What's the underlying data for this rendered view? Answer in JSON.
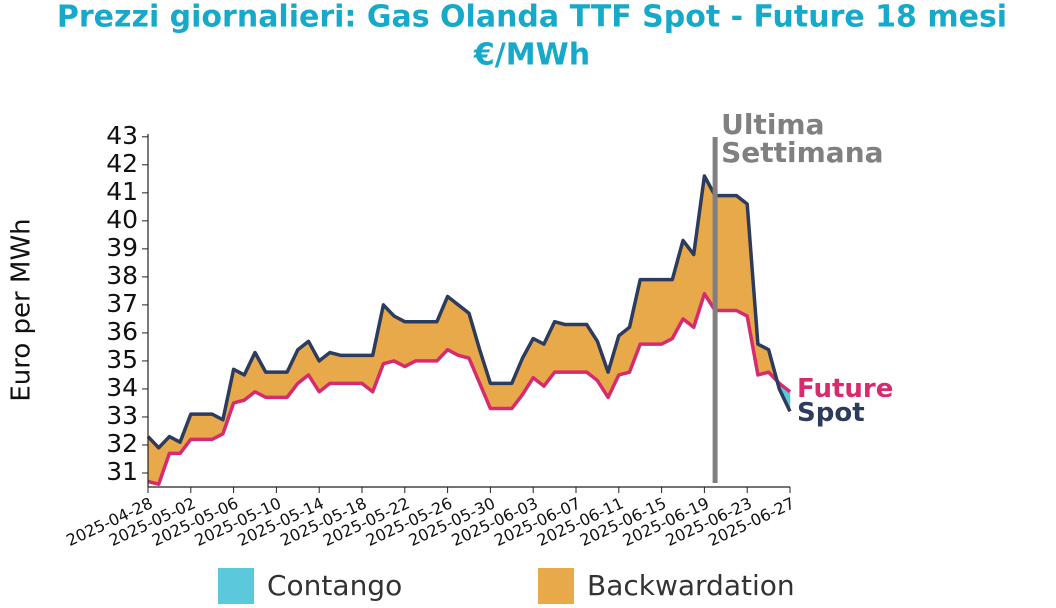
{
  "chart_data": {
    "type": "line-fill",
    "title": "Prezzi giornalieri: Gas Olanda TTF Spot - Future 18 mesi",
    "subtitle": "€/MWh",
    "y_label": "Euro per MWh",
    "x": [
      "2025-04-28",
      "2025-04-29",
      "2025-04-30",
      "2025-05-01",
      "2025-05-02",
      "2025-05-03",
      "2025-05-04",
      "2025-05-05",
      "2025-05-06",
      "2025-05-07",
      "2025-05-08",
      "2025-05-09",
      "2025-05-10",
      "2025-05-11",
      "2025-05-12",
      "2025-05-13",
      "2025-05-14",
      "2025-05-15",
      "2025-05-16",
      "2025-05-17",
      "2025-05-18",
      "2025-05-19",
      "2025-05-20",
      "2025-05-21",
      "2025-05-22",
      "2025-05-23",
      "2025-05-24",
      "2025-05-25",
      "2025-05-26",
      "2025-05-27",
      "2025-05-28",
      "2025-05-29",
      "2025-05-30",
      "2025-05-31",
      "2025-06-01",
      "2025-06-02",
      "2025-06-03",
      "2025-06-04",
      "2025-06-05",
      "2025-06-06",
      "2025-06-07",
      "2025-06-08",
      "2025-06-09",
      "2025-06-10",
      "2025-06-11",
      "2025-06-12",
      "2025-06-13",
      "2025-06-14",
      "2025-06-15",
      "2025-06-16",
      "2025-06-17",
      "2025-06-18",
      "2025-06-19",
      "2025-06-20",
      "2025-06-21",
      "2025-06-22",
      "2025-06-23",
      "2025-06-24",
      "2025-06-25",
      "2025-06-26",
      "2025-06-27"
    ],
    "series": [
      {
        "name": "Spot",
        "color": "#2d3b5c",
        "values": [
          32.3,
          31.9,
          32.3,
          32.1,
          33.1,
          33.1,
          33.1,
          32.9,
          34.7,
          34.5,
          35.3,
          34.6,
          34.6,
          34.6,
          35.4,
          35.7,
          35.0,
          35.3,
          35.2,
          35.2,
          35.2,
          35.2,
          37.0,
          36.6,
          36.4,
          36.4,
          36.4,
          36.4,
          37.3,
          37.0,
          36.7,
          35.4,
          34.2,
          34.2,
          34.2,
          35.1,
          35.8,
          35.6,
          36.4,
          36.3,
          36.3,
          36.3,
          35.7,
          34.6,
          35.9,
          36.2,
          37.9,
          37.9,
          37.9,
          37.9,
          39.3,
          38.8,
          41.6,
          40.9,
          40.9,
          40.9,
          40.6,
          35.6,
          35.4,
          34.0,
          33.2
        ]
      },
      {
        "name": "Future",
        "color": "#d62b6e",
        "values": [
          30.7,
          30.6,
          31.7,
          31.7,
          32.2,
          32.2,
          32.2,
          32.4,
          33.5,
          33.6,
          33.9,
          33.7,
          33.7,
          33.7,
          34.2,
          34.5,
          33.9,
          34.2,
          34.2,
          34.2,
          34.2,
          33.9,
          34.9,
          35.0,
          34.8,
          35.0,
          35.0,
          35.0,
          35.4,
          35.2,
          35.1,
          34.2,
          33.3,
          33.3,
          33.3,
          33.8,
          34.4,
          34.1,
          34.6,
          34.6,
          34.6,
          34.6,
          34.3,
          33.7,
          34.5,
          34.6,
          35.6,
          35.6,
          35.6,
          35.8,
          36.5,
          36.2,
          37.4,
          36.8,
          36.8,
          36.8,
          36.6,
          34.5,
          34.6,
          34.2,
          33.9
        ]
      }
    ],
    "fill_legend": [
      {
        "name": "Contango",
        "color": "#5bc8dc"
      },
      {
        "name": "Backwardation",
        "color": "#e8a94a"
      }
    ],
    "xlim": [
      "2025-04-28",
      "2025-06-27"
    ],
    "xticks": [
      "2025-04-28",
      "2025-05-02",
      "2025-05-06",
      "2025-05-10",
      "2025-05-14",
      "2025-05-18",
      "2025-05-22",
      "2025-05-26",
      "2025-05-30",
      "2025-06-03",
      "2025-06-07",
      "2025-06-11",
      "2025-06-15",
      "2025-06-19",
      "2025-06-23",
      "2025-06-27"
    ],
    "ylim": [
      30.5,
      43.1
    ],
    "yticks": [
      31,
      32,
      33,
      34,
      35,
      36,
      37,
      38,
      39,
      40,
      41,
      42,
      43
    ],
    "annotation": {
      "x": "2025-06-20",
      "lines": [
        "Ultima",
        "Settimana"
      ],
      "color": "#808080"
    }
  }
}
